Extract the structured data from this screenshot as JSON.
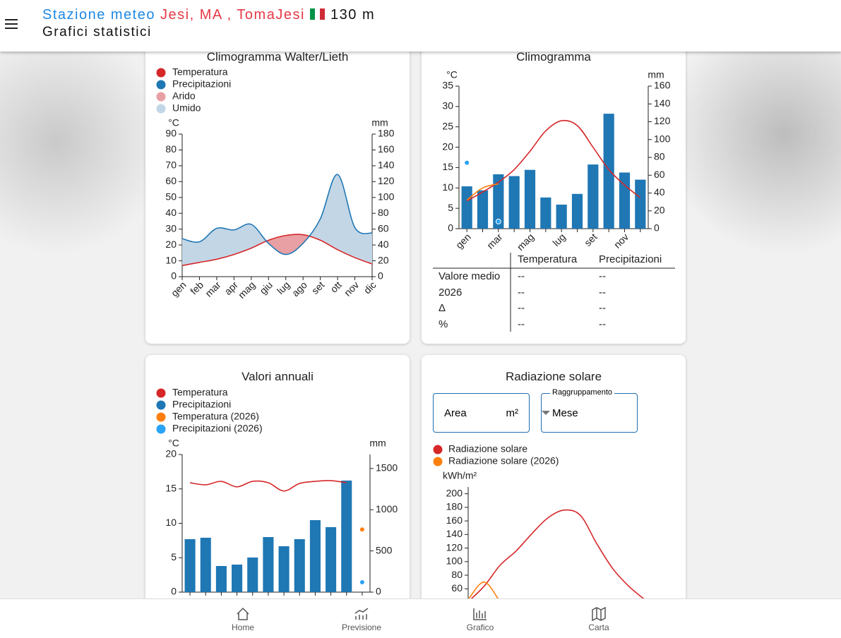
{
  "header": {
    "prefix": "Stazione meteo",
    "station": "Jesi, MA , TomaJesi",
    "altitude": "130 m",
    "subtitle": "Grafici statistici"
  },
  "chart_data": [
    {
      "type": "walter-lieth",
      "title": "Climogramma Walter/Lieth",
      "categories": [
        "gen",
        "feb",
        "mar",
        "apr",
        "mag",
        "giu",
        "lug",
        "ago",
        "set",
        "ott",
        "nov",
        "dic"
      ],
      "ylabel": "°C",
      "y2label": "mm",
      "ylim": [
        0,
        90
      ],
      "yticks": [
        0,
        10,
        20,
        30,
        40,
        50,
        60,
        70,
        80,
        90
      ],
      "y2lim": [
        0,
        180
      ],
      "y2ticks": [
        0,
        20,
        40,
        60,
        80,
        100,
        120,
        140,
        160,
        180
      ],
      "series": [
        {
          "name": "Temperatura",
          "color": "#d62728",
          "mark": "line",
          "values": [
            7,
            9,
            11,
            14,
            18,
            23,
            26,
            26.5,
            23,
            17,
            12,
            8
          ]
        },
        {
          "name": "Precipitazioni",
          "color": "#1f77b4",
          "mark": "line",
          "axis": "y2",
          "values": [
            48,
            44,
            61,
            59,
            66,
            42,
            28,
            42,
            73,
            129,
            62,
            55
          ]
        }
      ],
      "areas": [
        {
          "name": "Arido",
          "color": "#e8a0a4"
        },
        {
          "name": "Umido",
          "color": "#c3d6e6"
        }
      ]
    },
    {
      "type": "bar-line",
      "title": "Climogramma",
      "categories": [
        "gen",
        null,
        "mar",
        null,
        "mag",
        null,
        "lug",
        null,
        "set",
        null,
        "nov",
        null
      ],
      "ylabel": "°C",
      "y2label": "mm",
      "ylim": [
        0,
        35
      ],
      "yticks": [
        0,
        5,
        10,
        15,
        20,
        25,
        30,
        35
      ],
      "y2lim": [
        0,
        160
      ],
      "y2ticks": [
        0,
        20,
        40,
        60,
        80,
        100,
        120,
        140,
        160
      ],
      "series": [
        {
          "color": "#1f77b4",
          "mark": "bar",
          "axis": "y2",
          "values": [
            47.5,
            43,
            61,
            59,
            66,
            35,
            27,
            39,
            72,
            129,
            63,
            55
          ]
        },
        {
          "color": "#d62728",
          "mark": "line",
          "values": [
            6.8,
            9,
            11.4,
            14.5,
            19,
            24,
            26.5,
            25.3,
            20,
            14.5,
            10.7,
            7.6
          ]
        },
        {
          "color": "#ff7f0e",
          "mark": "line",
          "values": [
            7,
            10,
            11,
            null,
            null,
            null,
            null,
            null,
            null,
            null,
            null,
            null
          ]
        },
        {
          "color": "#29a3f5",
          "mark": "dot",
          "axis": "y2",
          "values": [
            74,
            null,
            8,
            null,
            null,
            null,
            null,
            null,
            null,
            null,
            null,
            null
          ]
        }
      ]
    },
    {
      "type": "bar-line",
      "title": "Valori annuali",
      "categories": [
        null,
        null,
        null,
        null,
        null,
        null,
        null,
        null,
        null,
        null,
        null,
        null
      ],
      "ylabel": "°C",
      "y2label": "mm",
      "ylim": [
        0,
        20
      ],
      "yticks": [
        0,
        5,
        10,
        15,
        20
      ],
      "y2lim": [
        0,
        1670
      ],
      "y2ticks": [
        0,
        500,
        1000,
        1500
      ],
      "series": [
        {
          "name": "Temperatura",
          "color": "#d62728",
          "mark": "line",
          "values": [
            15.9,
            15.6,
            16.1,
            15.3,
            16.1,
            15.9,
            14.7,
            15.8,
            16.1,
            16.2,
            15.9,
            null
          ]
        },
        {
          "name": "Precipitazioni",
          "color": "#1f77b4",
          "mark": "bar",
          "axis": "y2",
          "values": [
            643,
            660,
            317,
            334,
            420,
            668,
            557,
            643,
            874,
            789,
            1354,
            null
          ]
        },
        {
          "name": "Temperatura (2026)",
          "color": "#ff7f0e",
          "mark": "dot",
          "values": [
            null,
            null,
            null,
            null,
            null,
            null,
            null,
            null,
            null,
            null,
            null,
            9.1
          ]
        },
        {
          "name": "Precipitazioni (2026)",
          "color": "#29a3f5",
          "mark": "dot",
          "axis": "y2",
          "values": [
            null,
            null,
            null,
            null,
            null,
            null,
            null,
            null,
            null,
            null,
            null,
            120
          ]
        }
      ]
    },
    {
      "type": "line",
      "title": "Radiazione solare",
      "categories": [
        null,
        null,
        null,
        null,
        null,
        null,
        null,
        null,
        null,
        null,
        null,
        null
      ],
      "ylabel": "kWh/m²",
      "ylim": [
        0,
        210
      ],
      "yticks": [
        60,
        80,
        100,
        120,
        140,
        160,
        180,
        200
      ],
      "series": [
        {
          "name": "Radiazione solare",
          "color": "#d62728",
          "mark": "line",
          "values": [
            41,
            64,
            95,
            116,
            142,
            165,
            176,
            168,
            127,
            90,
            64,
            44
          ]
        },
        {
          "name": "Radiazione solare (2026)",
          "color": "#ff7f0e",
          "mark": "line",
          "values": [
            44,
            70,
            40,
            null,
            null,
            null,
            null,
            null,
            null,
            null,
            null,
            null
          ]
        }
      ]
    }
  ],
  "table": {
    "columns": [
      "Temperatura",
      "Precipitazioni"
    ],
    "rows": [
      [
        "Valore medio",
        "--",
        "--"
      ],
      [
        "2026",
        "--",
        "--"
      ],
      [
        "Δ",
        "--",
        "--"
      ],
      [
        "%",
        "--",
        "--"
      ]
    ]
  },
  "form": {
    "area_label": "Area",
    "area_unit": "m²",
    "group_label": "Raggruppamento",
    "group_value": "Mese"
  },
  "nav": [
    "Home",
    "Previsione",
    "Grafico",
    "Carta"
  ]
}
